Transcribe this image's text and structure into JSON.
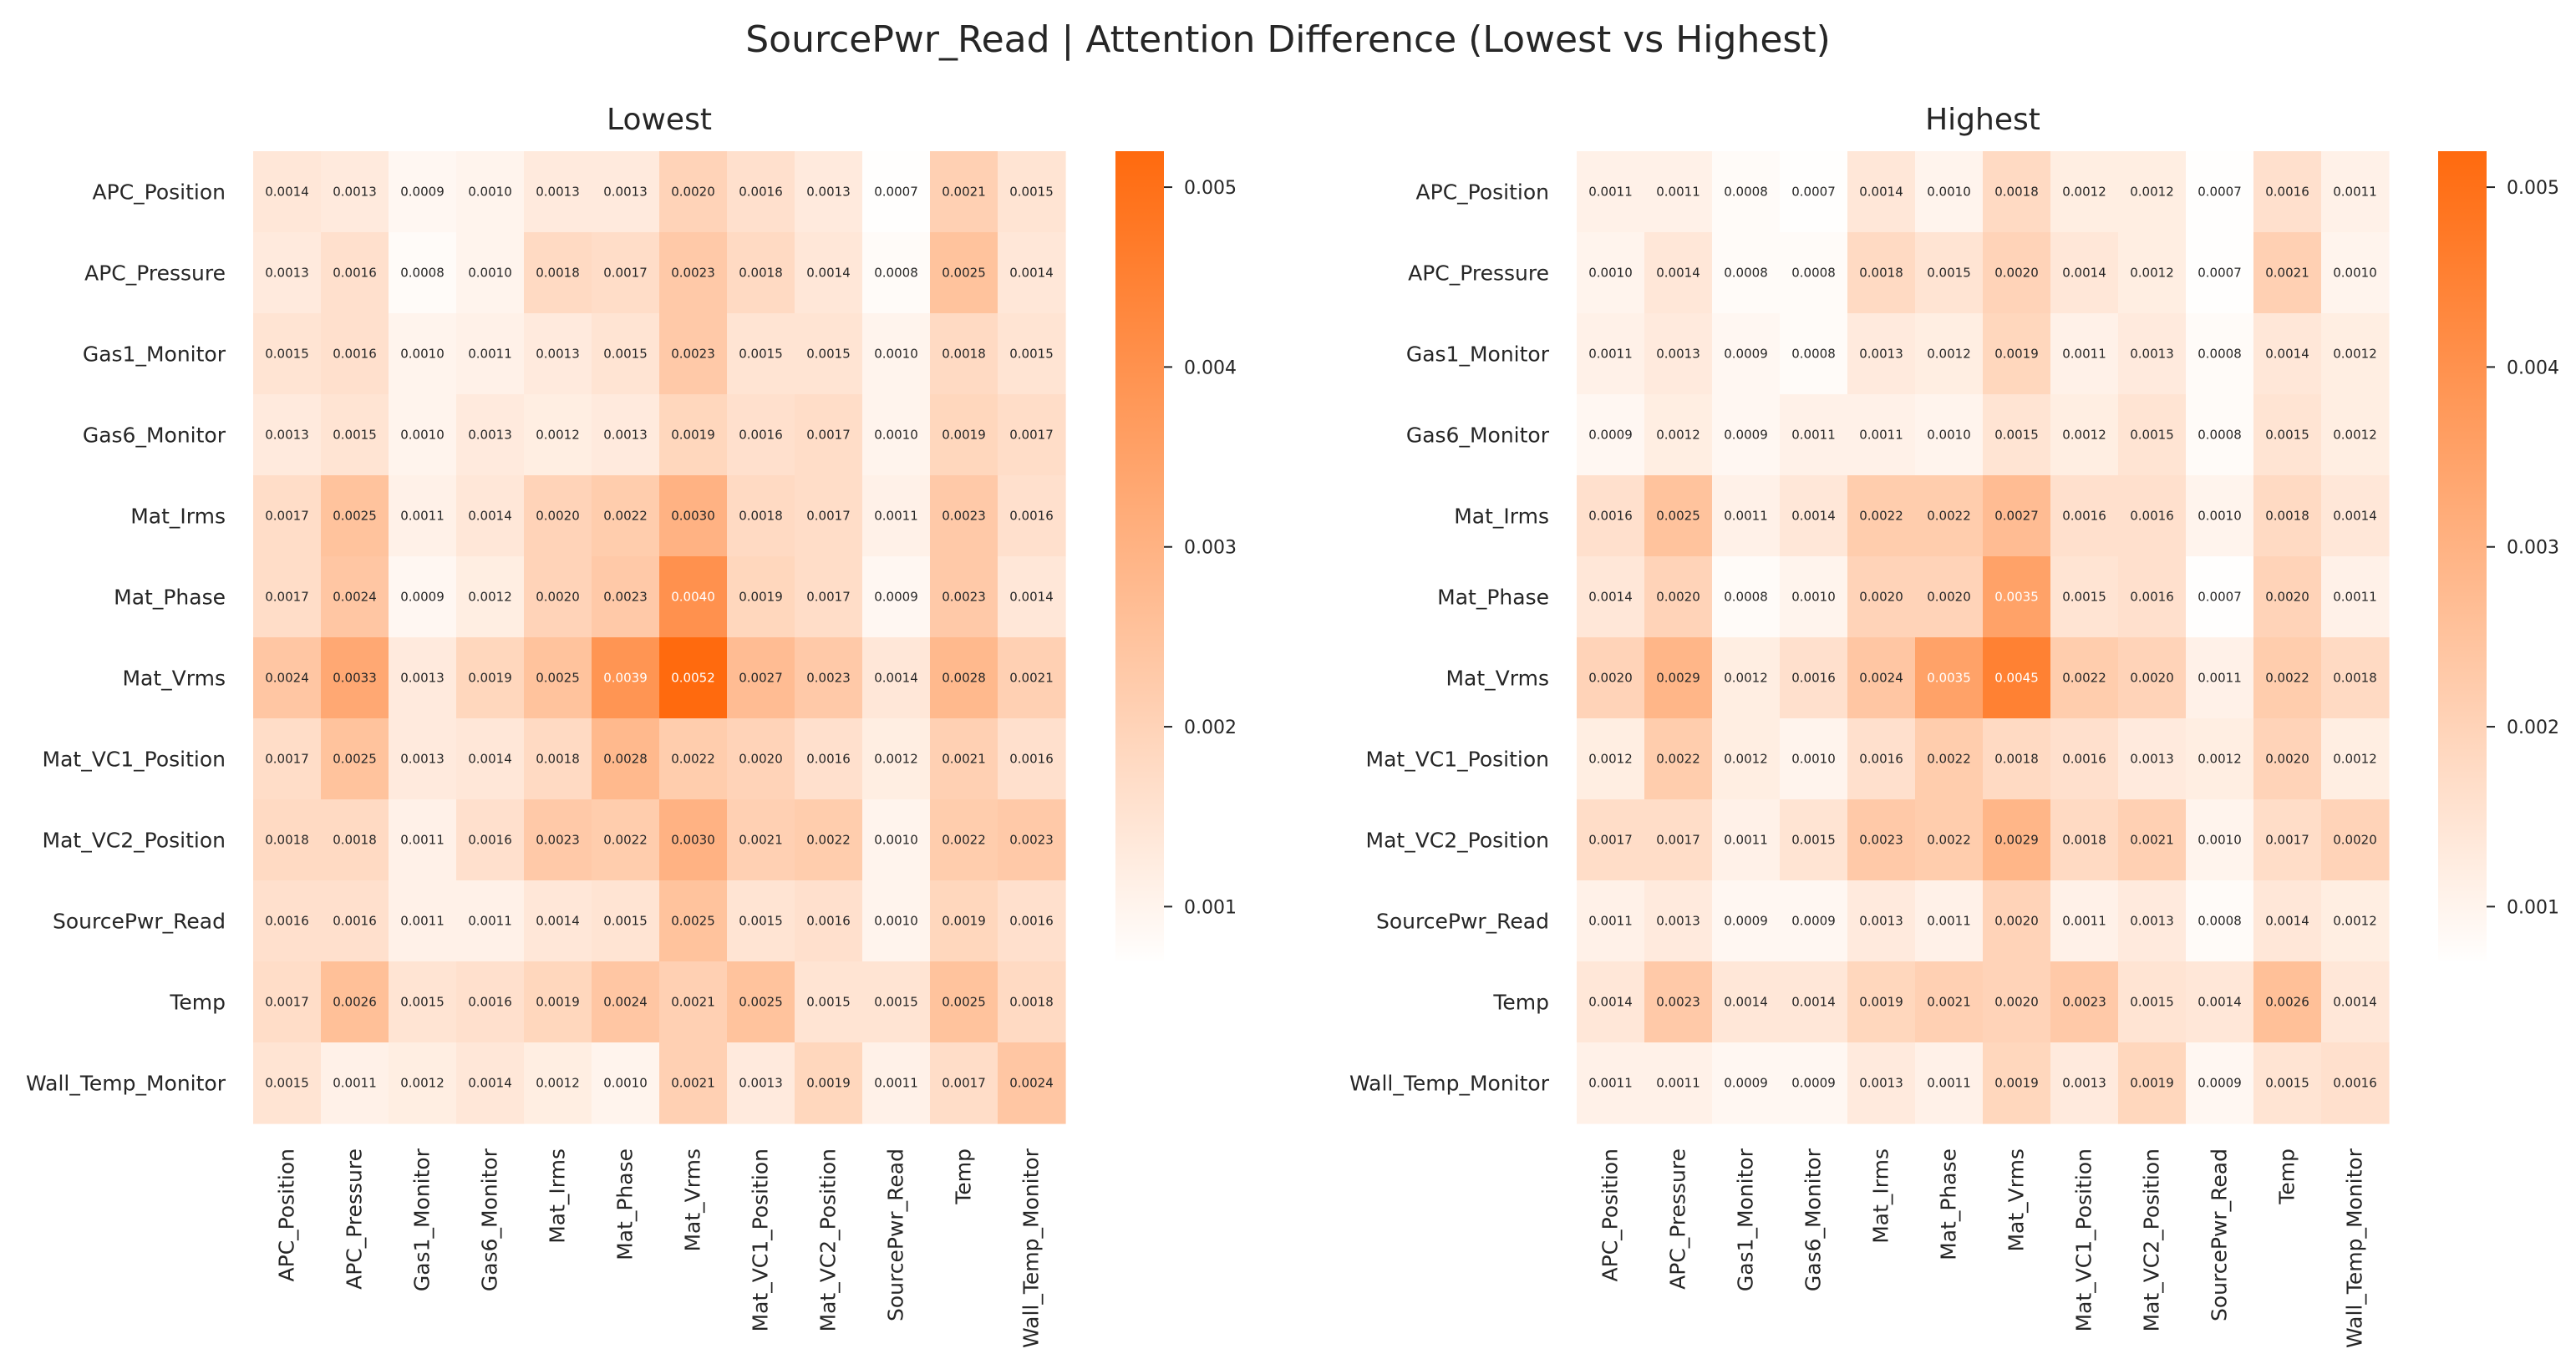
{
  "figure": {
    "suptitle": "SourcePwr_Read | Attention Difference (Lowest vs Highest)"
  },
  "colors": {
    "low": "#fffefd",
    "high": "#ff6a0e",
    "text": "#262626",
    "background": "#ffffff"
  },
  "chart_data": [
    {
      "type": "heatmap",
      "title": "Lowest",
      "rows": [
        "APC_Position",
        "APC_Pressure",
        "Gas1_Monitor",
        "Gas6_Monitor",
        "Mat_Irms",
        "Mat_Phase",
        "Mat_Vrms",
        "Mat_VC1_Position",
        "Mat_VC2_Position",
        "SourcePwr_Read",
        "Temp",
        "Wall_Temp_Monitor"
      ],
      "columns": [
        "APC_Position",
        "APC_Pressure",
        "Gas1_Monitor",
        "Gas6_Monitor",
        "Mat_Irms",
        "Mat_Phase",
        "Mat_Vrms",
        "Mat_VC1_Position",
        "Mat_VC2_Position",
        "SourcePwr_Read",
        "Temp",
        "Wall_Temp_Monitor"
      ],
      "values": [
        [
          "0.0014",
          "0.0013",
          "0.0009",
          "0.0010",
          "0.0013",
          "0.0013",
          "0.0020",
          "0.0016",
          "0.0013",
          "0.0007",
          "0.0021",
          "0.0015"
        ],
        [
          "0.0013",
          "0.0016",
          "0.0008",
          "0.0010",
          "0.0018",
          "0.0017",
          "0.0023",
          "0.0018",
          "0.0014",
          "0.0008",
          "0.0025",
          "0.0014"
        ],
        [
          "0.0015",
          "0.0016",
          "0.0010",
          "0.0011",
          "0.0013",
          "0.0015",
          "0.0023",
          "0.0015",
          "0.0015",
          "0.0010",
          "0.0018",
          "0.0015"
        ],
        [
          "0.0013",
          "0.0015",
          "0.0010",
          "0.0013",
          "0.0012",
          "0.0013",
          "0.0019",
          "0.0016",
          "0.0017",
          "0.0010",
          "0.0019",
          "0.0017"
        ],
        [
          "0.0017",
          "0.0025",
          "0.0011",
          "0.0014",
          "0.0020",
          "0.0022",
          "0.0030",
          "0.0018",
          "0.0017",
          "0.0011",
          "0.0023",
          "0.0016"
        ],
        [
          "0.0017",
          "0.0024",
          "0.0009",
          "0.0012",
          "0.0020",
          "0.0023",
          "0.0040",
          "0.0019",
          "0.0017",
          "0.0009",
          "0.0023",
          "0.0014"
        ],
        [
          "0.0024",
          "0.0033",
          "0.0013",
          "0.0019",
          "0.0025",
          "0.0039",
          "0.0052",
          "0.0027",
          "0.0023",
          "0.0014",
          "0.0028",
          "0.0021"
        ],
        [
          "0.0017",
          "0.0025",
          "0.0013",
          "0.0014",
          "0.0018",
          "0.0028",
          "0.0022",
          "0.0020",
          "0.0016",
          "0.0012",
          "0.0021",
          "0.0016"
        ],
        [
          "0.0018",
          "0.0018",
          "0.0011",
          "0.0016",
          "0.0023",
          "0.0022",
          "0.0030",
          "0.0021",
          "0.0022",
          "0.0010",
          "0.0022",
          "0.0023"
        ],
        [
          "0.0016",
          "0.0016",
          "0.0011",
          "0.0011",
          "0.0014",
          "0.0015",
          "0.0025",
          "0.0015",
          "0.0016",
          "0.0010",
          "0.0019",
          "0.0016"
        ],
        [
          "0.0017",
          "0.0026",
          "0.0015",
          "0.0016",
          "0.0019",
          "0.0024",
          "0.0021",
          "0.0025",
          "0.0015",
          "0.0015",
          "0.0025",
          "0.0018"
        ],
        [
          "0.0015",
          "0.0011",
          "0.0012",
          "0.0014",
          "0.0012",
          "0.0010",
          "0.0021",
          "0.0013",
          "0.0019",
          "0.0011",
          "0.0017",
          "0.0024"
        ]
      ],
      "colorbar": {
        "ticks": [
          "0.001",
          "0.002",
          "0.003",
          "0.004",
          "0.005"
        ],
        "range": [
          0.0007,
          0.0052
        ]
      }
    },
    {
      "type": "heatmap",
      "title": "Highest",
      "rows": [
        "APC_Position",
        "APC_Pressure",
        "Gas1_Monitor",
        "Gas6_Monitor",
        "Mat_Irms",
        "Mat_Phase",
        "Mat_Vrms",
        "Mat_VC1_Position",
        "Mat_VC2_Position",
        "SourcePwr_Read",
        "Temp",
        "Wall_Temp_Monitor"
      ],
      "columns": [
        "APC_Position",
        "APC_Pressure",
        "Gas1_Monitor",
        "Gas6_Monitor",
        "Mat_Irms",
        "Mat_Phase",
        "Mat_Vrms",
        "Mat_VC1_Position",
        "Mat_VC2_Position",
        "SourcePwr_Read",
        "Temp",
        "Wall_Temp_Monitor"
      ],
      "values": [
        [
          "0.0011",
          "0.0011",
          "0.0008",
          "0.0007",
          "0.0014",
          "0.0010",
          "0.0018",
          "0.0012",
          "0.0012",
          "0.0007",
          "0.0016",
          "0.0011"
        ],
        [
          "0.0010",
          "0.0014",
          "0.0008",
          "0.0008",
          "0.0018",
          "0.0015",
          "0.0020",
          "0.0014",
          "0.0012",
          "0.0007",
          "0.0021",
          "0.0010"
        ],
        [
          "0.0011",
          "0.0013",
          "0.0009",
          "0.0008",
          "0.0013",
          "0.0012",
          "0.0019",
          "0.0011",
          "0.0013",
          "0.0008",
          "0.0014",
          "0.0012"
        ],
        [
          "0.0009",
          "0.0012",
          "0.0009",
          "0.0011",
          "0.0011",
          "0.0010",
          "0.0015",
          "0.0012",
          "0.0015",
          "0.0008",
          "0.0015",
          "0.0012"
        ],
        [
          "0.0016",
          "0.0025",
          "0.0011",
          "0.0014",
          "0.0022",
          "0.0022",
          "0.0027",
          "0.0016",
          "0.0016",
          "0.0010",
          "0.0018",
          "0.0014"
        ],
        [
          "0.0014",
          "0.0020",
          "0.0008",
          "0.0010",
          "0.0020",
          "0.0020",
          "0.0035",
          "0.0015",
          "0.0016",
          "0.0007",
          "0.0020",
          "0.0011"
        ],
        [
          "0.0020",
          "0.0029",
          "0.0012",
          "0.0016",
          "0.0024",
          "0.0035",
          "0.0045",
          "0.0022",
          "0.0020",
          "0.0011",
          "0.0022",
          "0.0018"
        ],
        [
          "0.0012",
          "0.0022",
          "0.0012",
          "0.0010",
          "0.0016",
          "0.0022",
          "0.0018",
          "0.0016",
          "0.0013",
          "0.0012",
          "0.0020",
          "0.0012"
        ],
        [
          "0.0017",
          "0.0017",
          "0.0011",
          "0.0015",
          "0.0023",
          "0.0022",
          "0.0029",
          "0.0018",
          "0.0021",
          "0.0010",
          "0.0017",
          "0.0020"
        ],
        [
          "0.0011",
          "0.0013",
          "0.0009",
          "0.0009",
          "0.0013",
          "0.0011",
          "0.0020",
          "0.0011",
          "0.0013",
          "0.0008",
          "0.0014",
          "0.0012"
        ],
        [
          "0.0014",
          "0.0023",
          "0.0014",
          "0.0014",
          "0.0019",
          "0.0021",
          "0.0020",
          "0.0023",
          "0.0015",
          "0.0014",
          "0.0026",
          "0.0014"
        ],
        [
          "0.0011",
          "0.0011",
          "0.0009",
          "0.0009",
          "0.0013",
          "0.0011",
          "0.0019",
          "0.0013",
          "0.0019",
          "0.0009",
          "0.0015",
          "0.0016"
        ]
      ],
      "colorbar": {
        "ticks": [
          "0.001",
          "0.002",
          "0.003",
          "0.004",
          "0.005"
        ],
        "range": [
          0.0007,
          0.0052
        ]
      }
    }
  ]
}
